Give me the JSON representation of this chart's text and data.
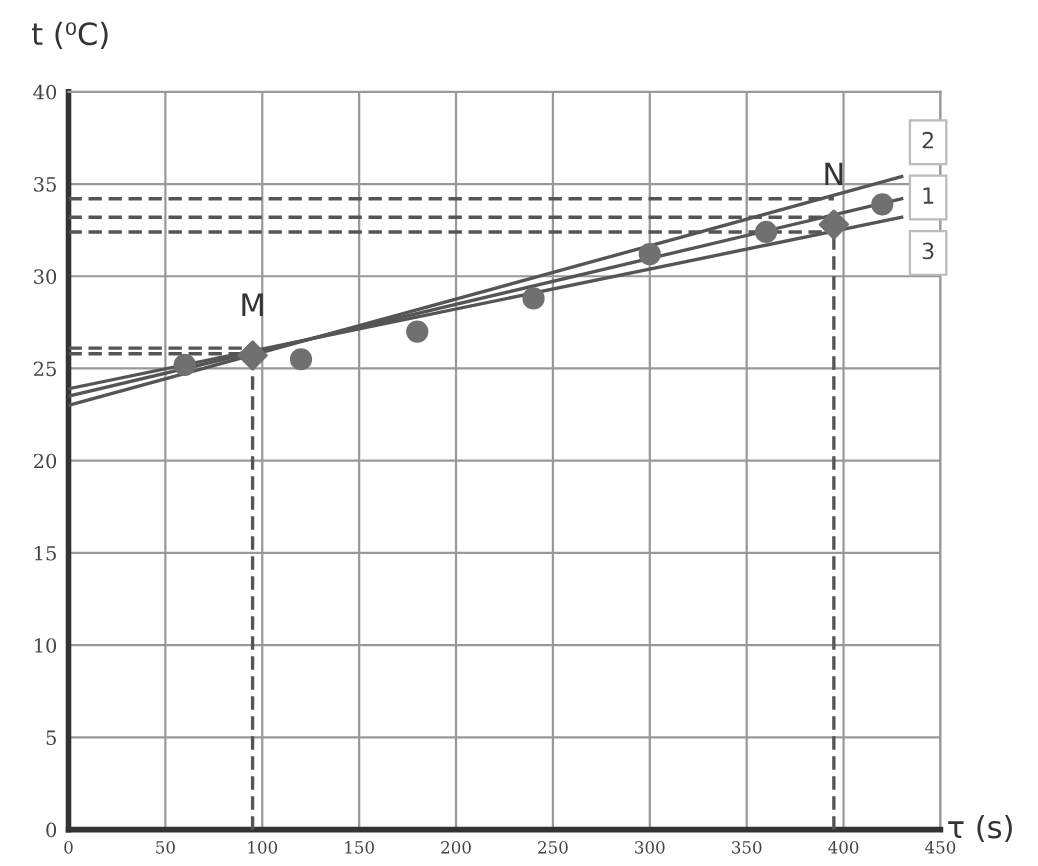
{
  "chart_data": {
    "type": "line",
    "xlabel": "τ (s)",
    "ylabel": "t (⁰C)",
    "xlim": [
      0,
      450
    ],
    "ylim": [
      0,
      40
    ],
    "xticks": [
      0,
      50,
      100,
      150,
      200,
      250,
      300,
      350,
      400,
      450
    ],
    "yticks": [
      0,
      5,
      10,
      15,
      20,
      25,
      30,
      35,
      40
    ],
    "grid": true,
    "legend": false,
    "series": [
      {
        "type": "scatter",
        "color": "#707070",
        "marker": "circle",
        "x": [
          60,
          120,
          180,
          240,
          300,
          360,
          420
        ],
        "values": [
          25.2,
          25.5,
          27.0,
          28.8,
          31.2,
          32.4,
          33.9
        ]
      },
      {
        "type": "scatter",
        "color": "#707070",
        "marker": "diamond",
        "x": [
          95,
          395
        ],
        "values": [
          25.7,
          32.8
        ]
      },
      {
        "name": "2",
        "color": "#555555",
        "line_style": "solid",
        "x": [
          0,
          430
        ],
        "values": [
          23.0,
          35.4
        ]
      },
      {
        "name": "1",
        "color": "#555555",
        "line_style": "solid",
        "x": [
          0,
          430
        ],
        "values": [
          23.5,
          34.2
        ]
      },
      {
        "name": "3",
        "color": "#555555",
        "line_style": "solid",
        "x": [
          0,
          430
        ],
        "values": [
          23.9,
          33.2
        ]
      },
      {
        "color": "#555555",
        "line_style": "dashed",
        "x": [
          0,
          395
        ],
        "values": [
          34.2,
          34.2
        ]
      },
      {
        "color": "#555555",
        "line_style": "dashed",
        "x": [
          0,
          395
        ],
        "values": [
          33.2,
          33.2
        ]
      },
      {
        "color": "#555555",
        "line_style": "dashed",
        "x": [
          0,
          395
        ],
        "values": [
          32.4,
          32.4
        ]
      },
      {
        "color": "#555555",
        "line_style": "dashed",
        "x": [
          0,
          95
        ],
        "values": [
          26.1,
          26.1
        ]
      },
      {
        "color": "#555555",
        "line_style": "dashed",
        "x": [
          0,
          95
        ],
        "values": [
          25.8,
          25.8
        ]
      },
      {
        "color": "#555555",
        "line_style": "dashed",
        "x": [
          95,
          95
        ],
        "values": [
          0,
          25.7
        ]
      },
      {
        "color": "#555555",
        "line_style": "dashed",
        "x": [
          395,
          395
        ],
        "values": [
          0,
          32.8
        ]
      }
    ],
    "annotations": [
      {
        "text": "M",
        "x": 95,
        "y": 25.7
      },
      {
        "text": "N",
        "x": 395,
        "y": 32.8
      }
    ]
  }
}
